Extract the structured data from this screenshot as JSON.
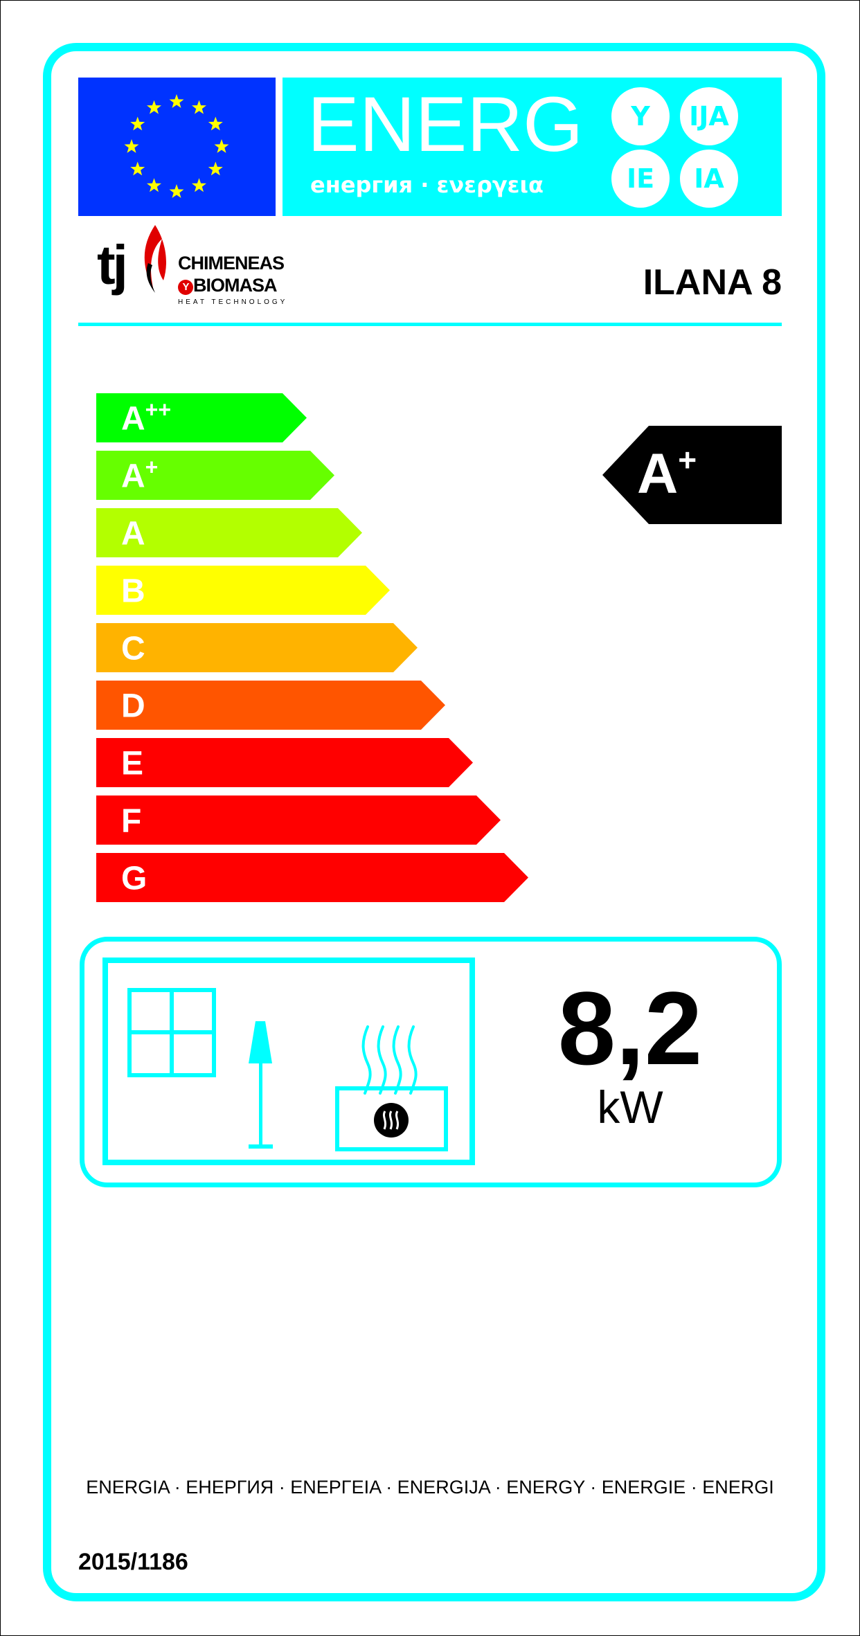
{
  "header": {
    "energy_word": "ENERG",
    "energy_subtitle": "енергия · ενεργεια",
    "suffixes": [
      "Y",
      "IJA",
      "IE",
      "IA"
    ],
    "flag_color": "#0033ff",
    "star_color": "#ffff00",
    "accent_color": "#00ffff"
  },
  "brand": {
    "logo_mark": "tj",
    "line1": "CHIMENEAS",
    "line2_y": "Y",
    "line2": "BIOMASA",
    "tagline": "HEAT TECHNOLOGY"
  },
  "model": "ILANA 8",
  "energy_scale": {
    "classes": [
      {
        "label": "A",
        "sup": "++",
        "color": "#00ff00"
      },
      {
        "label": "A",
        "sup": "+",
        "color": "#66ff00"
      },
      {
        "label": "A",
        "sup": "",
        "color": "#b3ff00"
      },
      {
        "label": "B",
        "sup": "",
        "color": "#ffff00"
      },
      {
        "label": "C",
        "sup": "",
        "color": "#ffb300"
      },
      {
        "label": "D",
        "sup": "",
        "color": "#ff5500"
      },
      {
        "label": "E",
        "sup": "",
        "color": "#ff0000"
      },
      {
        "label": "F",
        "sup": "",
        "color": "#ff0000"
      },
      {
        "label": "G",
        "sup": "",
        "color": "#ff0000"
      }
    ],
    "rating": {
      "label": "A",
      "sup": "+",
      "class_index": 1
    }
  },
  "power": {
    "value": "8,2",
    "unit": "kW"
  },
  "icons": [
    "window-icon",
    "lamp-icon",
    "heat-waves-icon",
    "stove-icon"
  ],
  "footer": "ENERGIA · ЕНЕРГИЯ · ΕΝΕΡΓΕΙΑ · ENERGIJA · ENERGY · ENERGIE · ENERGI",
  "regulation": "2015/1186"
}
